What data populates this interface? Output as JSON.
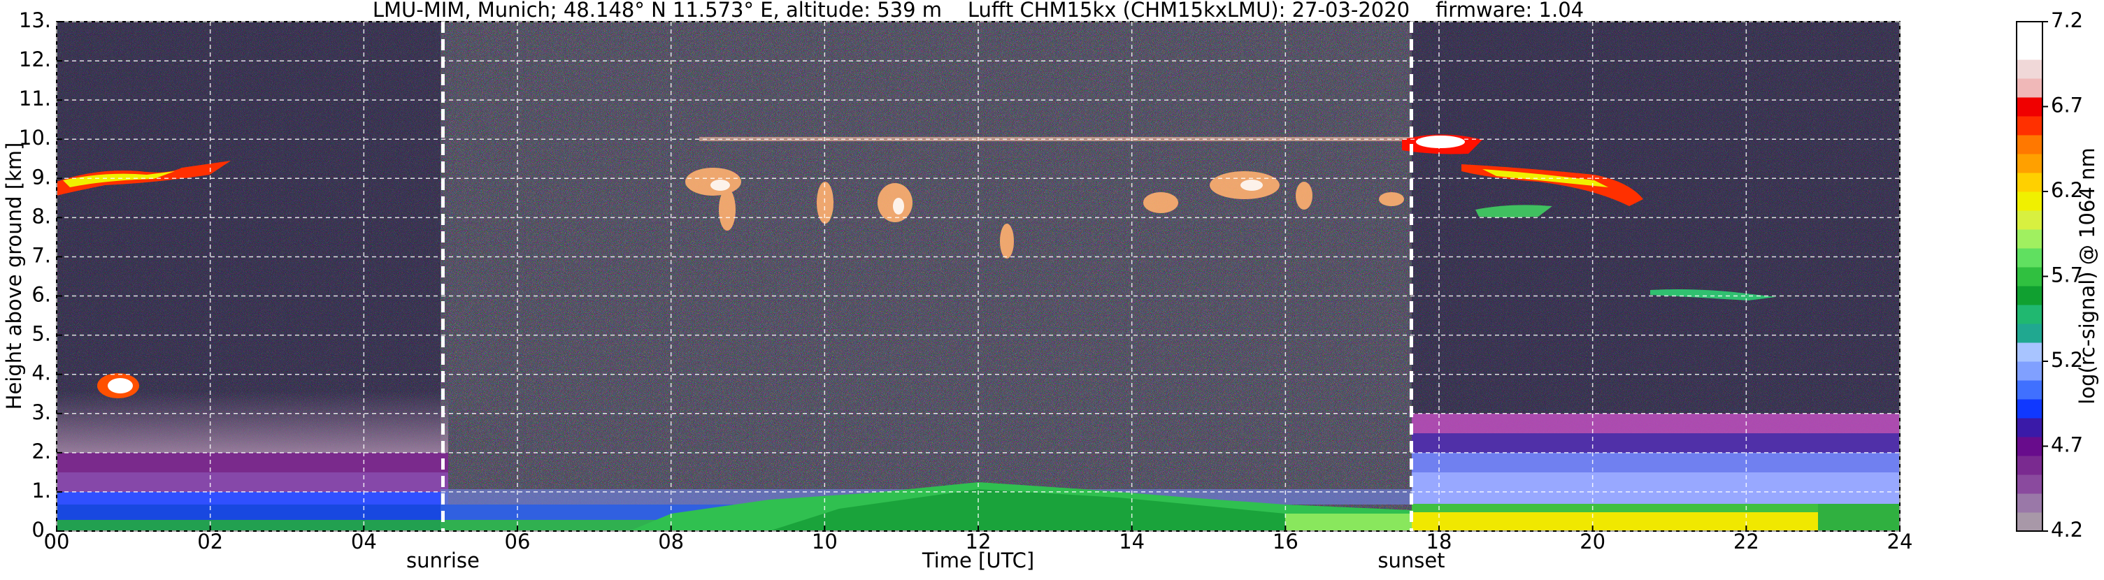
{
  "chart_data": {
    "type": "heatmap",
    "title": "LMU-MIM, Munich; 48.148° N 11.573° E, altitude: 539 m    Lufft CHM15kx (CHM15kxLMU): 27-03-2020    firmware: 1.04",
    "xlabel": "Time [UTC]",
    "ylabel": "Height above ground [km]",
    "xlim": [
      0,
      24
    ],
    "xticks": [
      {
        "value": 0,
        "label": "00"
      },
      {
        "value": 2,
        "label": "02"
      },
      {
        "value": 4,
        "label": "04"
      },
      {
        "value": 6,
        "label": "06"
      },
      {
        "value": 8,
        "label": "08"
      },
      10,
      12,
      14,
      16,
      18,
      20,
      22,
      24
    ],
    "ylim": [
      0,
      13
    ],
    "yticks": [
      {
        "value": 0,
        "label": "0."
      },
      {
        "value": 1,
        "label": "1."
      },
      {
        "value": 2,
        "label": "2."
      },
      {
        "value": 3,
        "label": "3."
      },
      {
        "value": 4,
        "label": "4."
      },
      {
        "value": 5,
        "label": "5."
      },
      {
        "value": 6,
        "label": "6."
      },
      {
        "value": 7,
        "label": "7."
      },
      {
        "value": 8,
        "label": "8."
      },
      {
        "value": 9,
        "label": "9."
      },
      {
        "value": 10,
        "label": "10."
      },
      {
        "value": 11,
        "label": "11."
      },
      {
        "value": 12,
        "label": "12."
      },
      {
        "value": 13,
        "label": "13."
      }
    ],
    "grid": true,
    "annotations": [
      {
        "text": "sunrise",
        "x": 5.03
      },
      {
        "text": "sunset",
        "x": 17.64
      }
    ],
    "colorbar": {
      "label": "log(rc-signal) @ 1064 nm",
      "lim": [
        4.2,
        7.2
      ],
      "ticks": [
        4.2,
        4.7,
        5.2,
        5.7,
        6.2,
        6.7,
        7.2
      ],
      "colors": [
        "#a898a8",
        "#9a78a8",
        "#8a4a9e",
        "#7a2a90",
        "#680c8c",
        "#3a1aa8",
        "#1038ff",
        "#4070ff",
        "#80a0ff",
        "#a8c4ff",
        "#20a890",
        "#20b870",
        "#10a030",
        "#30c040",
        "#60e060",
        "#a0f060",
        "#d8f040",
        "#f0f000",
        "#ffd000",
        "#ffa000",
        "#ff7800",
        "#ff3000",
        "#f00000",
        "#f0b8b8",
        "#f0d8d8",
        "#ffffff",
        "#ffffff"
      ]
    }
  }
}
